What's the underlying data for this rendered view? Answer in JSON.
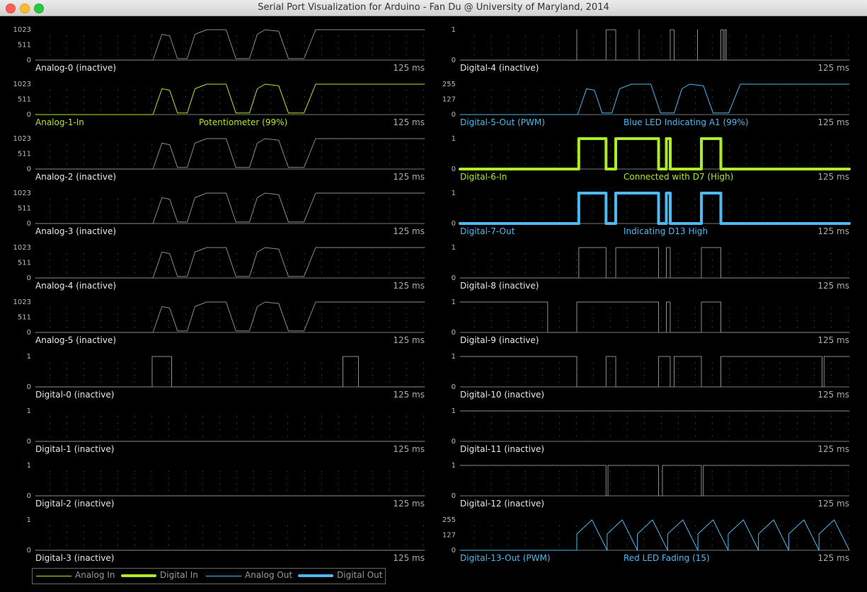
{
  "window": {
    "title": "Serial Port Visualization for Arduino - Fan Du @ University of Maryland, 2014"
  },
  "colors": {
    "digital_in": "#ADEB2A",
    "pwm": "#4EB8F0",
    "inactive_trace": "#8C8C8C",
    "grid_dot": "#555555"
  },
  "duration": "125 ms",
  "left_channels": [
    {
      "id": "a0",
      "label": "Analog-0 (inactive)",
      "note": "",
      "ticks": [
        "1023",
        "511",
        "0"
      ],
      "kind": "analog",
      "state": "inactive"
    },
    {
      "id": "a1",
      "label": "Analog-1-In",
      "note": "Potentiometer (99%)",
      "ticks": [
        "1023",
        "511",
        "0"
      ],
      "kind": "analog",
      "state": "in"
    },
    {
      "id": "a2",
      "label": "Analog-2 (inactive)",
      "note": "",
      "ticks": [
        "1023",
        "511",
        "0"
      ],
      "kind": "analog",
      "state": "inactive"
    },
    {
      "id": "a3",
      "label": "Analog-3 (inactive)",
      "note": "",
      "ticks": [
        "1023",
        "511",
        "0"
      ],
      "kind": "analog",
      "state": "inactive"
    },
    {
      "id": "a4",
      "label": "Analog-4 (inactive)",
      "note": "",
      "ticks": [
        "1023",
        "511",
        "0"
      ],
      "kind": "analog",
      "state": "inactive"
    },
    {
      "id": "a5",
      "label": "Analog-5 (inactive)",
      "note": "",
      "ticks": [
        "1023",
        "511",
        "0"
      ],
      "kind": "analog",
      "state": "inactive"
    },
    {
      "id": "d0",
      "label": "Digital-0 (inactive)",
      "note": "",
      "ticks": [
        "1",
        "0"
      ],
      "kind": "digital",
      "state": "inactive"
    },
    {
      "id": "d1",
      "label": "Digital-1 (inactive)",
      "note": "",
      "ticks": [
        "1",
        "0"
      ],
      "kind": "digital",
      "state": "inactive"
    },
    {
      "id": "d2",
      "label": "Digital-2 (inactive)",
      "note": "",
      "ticks": [
        "1",
        "0"
      ],
      "kind": "digital",
      "state": "inactive"
    },
    {
      "id": "d3",
      "label": "Digital-3 (inactive)",
      "note": "",
      "ticks": [
        "1",
        "0"
      ],
      "kind": "digital",
      "state": "inactive"
    }
  ],
  "right_channels": [
    {
      "id": "d4",
      "label": "Digital-4 (inactive)",
      "note": "",
      "ticks": [
        "1",
        "0"
      ],
      "kind": "digital",
      "state": "inactive"
    },
    {
      "id": "d5",
      "label": "Digital-5-Out (PWM)",
      "note": "Blue LED Indicating A1 (99%)",
      "ticks": [
        "255",
        "127",
        "0"
      ],
      "kind": "pwm",
      "state": "out"
    },
    {
      "id": "d6",
      "label": "Digital-6-In",
      "note": "Connected with D7 (High)",
      "ticks": [
        "1",
        "0"
      ],
      "kind": "digital",
      "state": "in"
    },
    {
      "id": "d7",
      "label": "Digital-7-Out",
      "note": "Indicating D13 High",
      "ticks": [
        "1",
        "0"
      ],
      "kind": "digital",
      "state": "out"
    },
    {
      "id": "d8",
      "label": "Digital-8 (inactive)",
      "note": "",
      "ticks": [
        "1",
        "0"
      ],
      "kind": "digital",
      "state": "inactive"
    },
    {
      "id": "d9",
      "label": "Digital-9 (inactive)",
      "note": "",
      "ticks": [
        "1",
        "0"
      ],
      "kind": "digital",
      "state": "inactive"
    },
    {
      "id": "d10",
      "label": "Digital-10 (inactive)",
      "note": "",
      "ticks": [
        "1",
        "0"
      ],
      "kind": "digital",
      "state": "inactive"
    },
    {
      "id": "d11",
      "label": "Digital-11 (inactive)",
      "note": "",
      "ticks": [
        "1",
        "0"
      ],
      "kind": "digital",
      "state": "inactive"
    },
    {
      "id": "d12",
      "label": "Digital-12 (inactive)",
      "note": "",
      "ticks": [
        "1",
        "0"
      ],
      "kind": "digital",
      "state": "inactive"
    },
    {
      "id": "d13",
      "label": "Digital-13-Out (PWM)",
      "note": "Red LED Fading (15)",
      "ticks": [
        "255",
        "127",
        "0"
      ],
      "kind": "pwm",
      "state": "out"
    }
  ],
  "legend": [
    {
      "label": "Analog In",
      "style": "analog-in"
    },
    {
      "label": "Digital In",
      "style": "digital-in"
    },
    {
      "label": "Analog Out",
      "style": "analog-out"
    },
    {
      "label": "Digital Out",
      "style": "digital-out"
    }
  ]
}
